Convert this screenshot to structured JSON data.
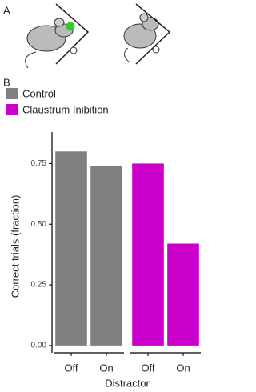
{
  "panel_labels": [
    "A",
    "B"
  ],
  "chart_data": {
    "type": "bar",
    "x_label": "Distractor",
    "y_label": "Correct trials (fraction)",
    "categories": [
      "Off",
      "On"
    ],
    "series": [
      {
        "name": "Control",
        "color": "#808080",
        "values": [
          0.8,
          0.74
        ]
      },
      {
        "name": "Claustrum Inibition",
        "color": "#cc00cc",
        "values": [
          0.75,
          0.42
        ]
      }
    ],
    "ylim": [
      -0.03,
      0.88
    ],
    "yticks": [
      {
        "value": 0,
        "label": "0.00"
      },
      {
        "value": 0.25,
        "label": "0.25"
      },
      {
        "value": 0.5,
        "label": "0.50"
      },
      {
        "value": 0.75,
        "label": "0.75"
      }
    ],
    "grid": false
  }
}
